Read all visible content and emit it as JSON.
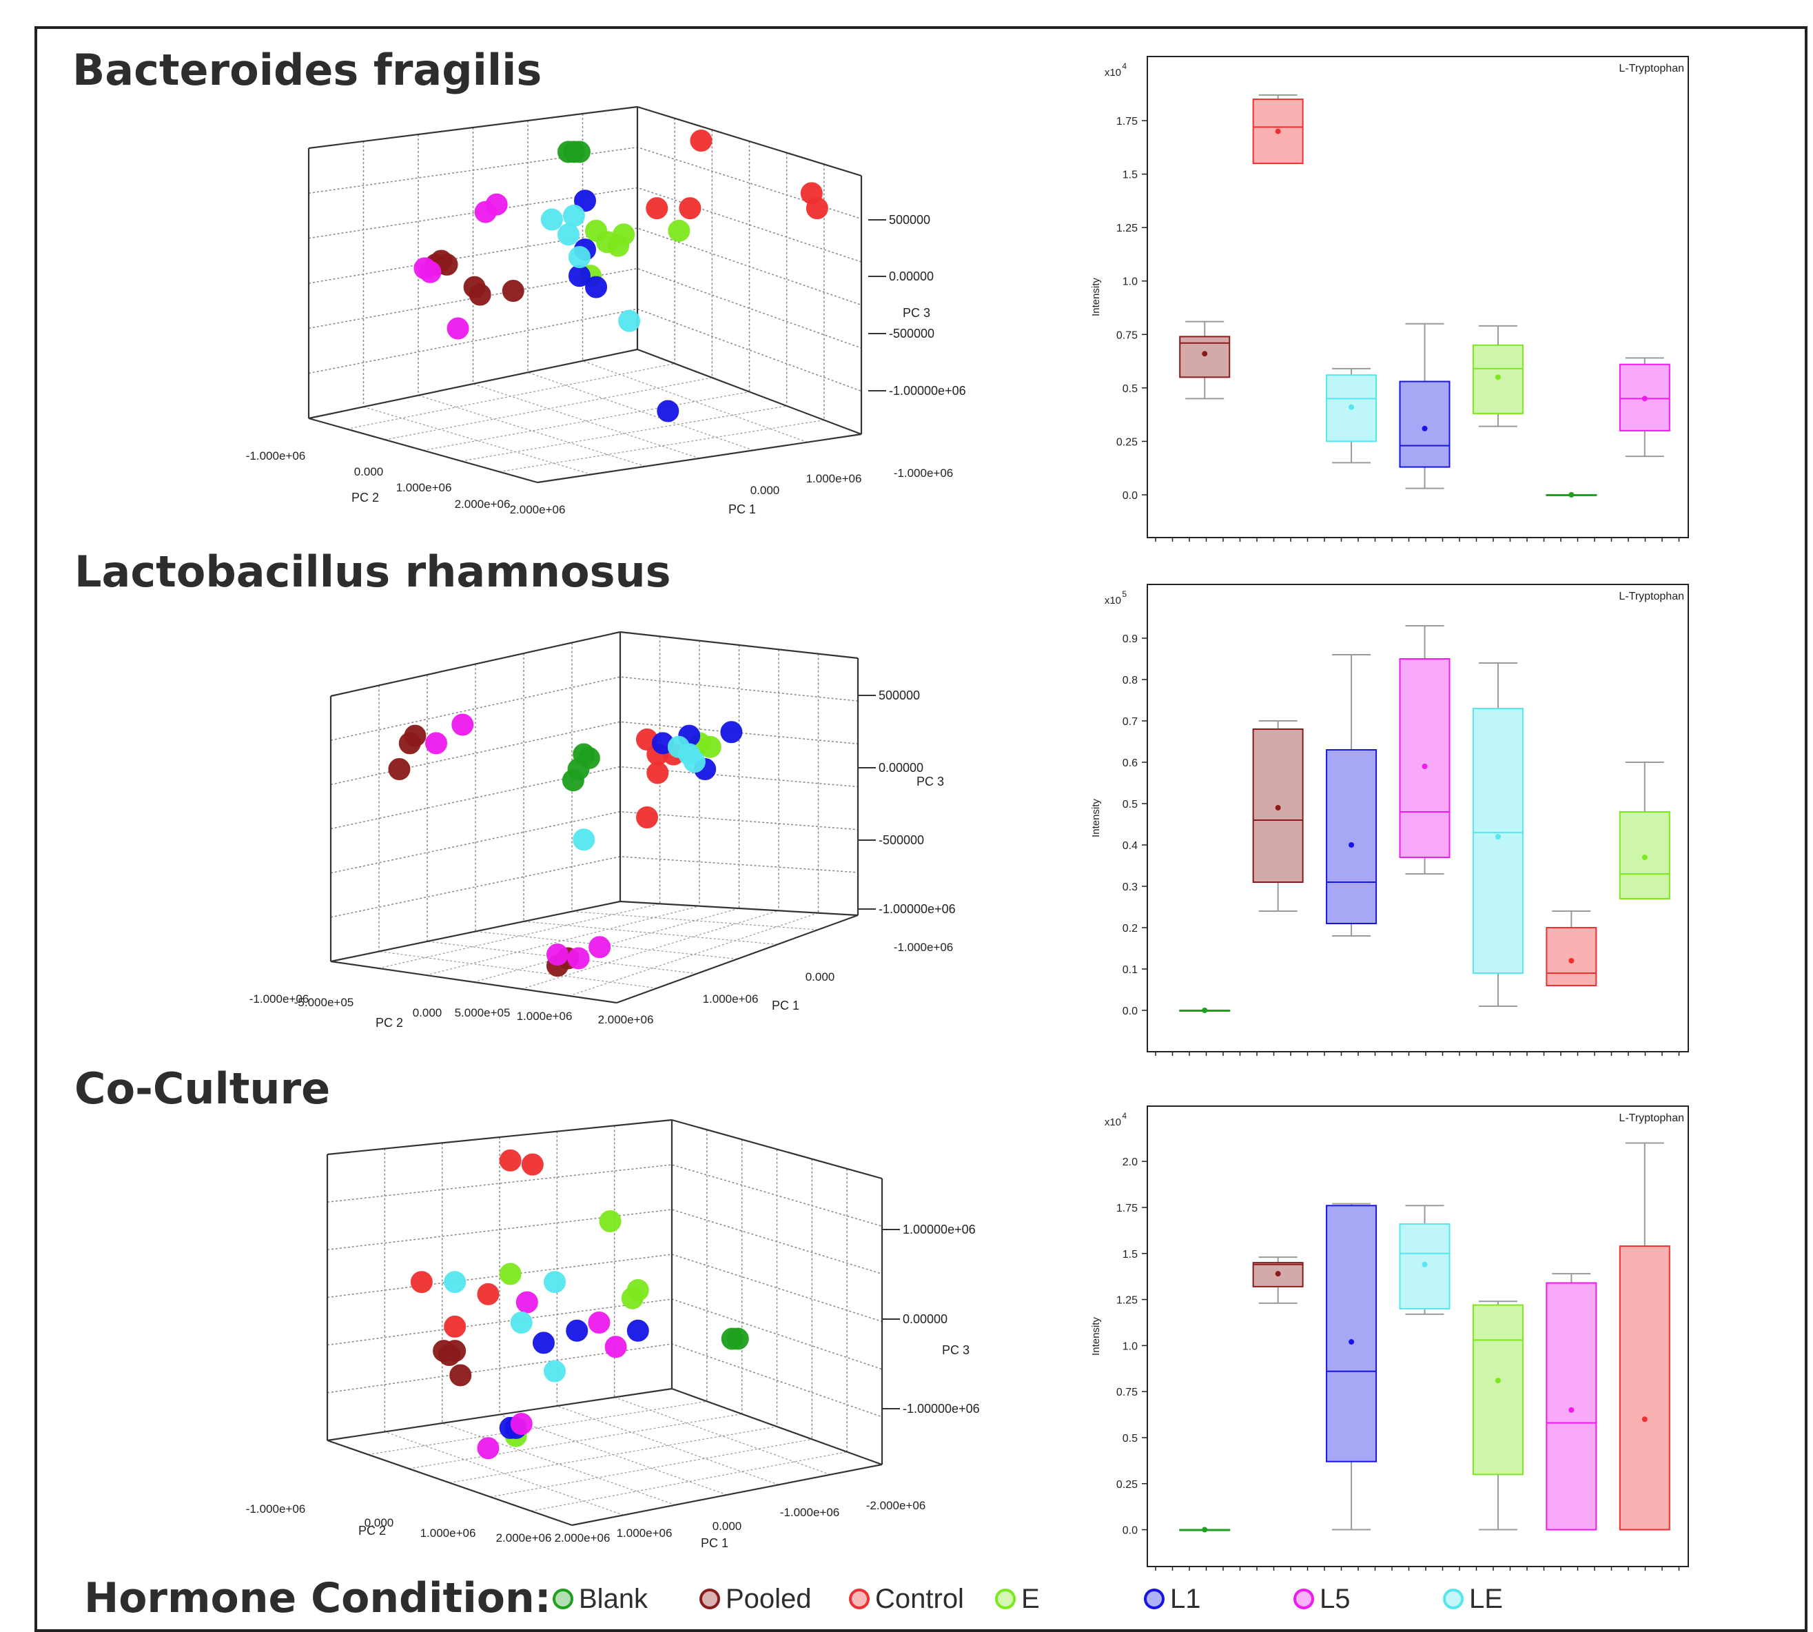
{
  "legend": {
    "title": "Hormone Condition:",
    "items": [
      {
        "label": "Blank",
        "color": "#1ea01e"
      },
      {
        "label": "Pooled",
        "color": "#8b1a1a"
      },
      {
        "label": "Control",
        "color": "#f03030"
      },
      {
        "label": "E",
        "color": "#7ee81e"
      },
      {
        "label": "L1",
        "color": "#1515e6"
      },
      {
        "label": "L5",
        "color": "#ee1aee"
      },
      {
        "label": "LE",
        "color": "#55e6f0"
      }
    ]
  },
  "panels": [
    {
      "title": "Bacteroides fragilis"
    },
    {
      "title": "Lactobacillus rhamnosus"
    },
    {
      "title": "Co-Culture"
    }
  ],
  "chart_data": [
    {
      "type": "scatter",
      "panel": "Bacteroides fragilis",
      "xlabel": "PC 1",
      "ylabel": "PC 2",
      "zlabel": "PC 3",
      "x_ticks": [
        "0.000",
        "1.000e+06",
        "-1.000e+06"
      ],
      "y_ticks": [
        "-1.000e+06",
        "0.000",
        "1.000e+06",
        "2.000e+06",
        "2.000e+06"
      ],
      "z_ticks": [
        "500000",
        "0.00000",
        "-500000",
        "-1.00000e+06"
      ],
      "projected_points": [
        {
          "group": "Blank",
          "pts": [
            [
              0.47,
              0.12
            ],
            [
              0.48,
              0.12
            ],
            [
              0.49,
              0.12
            ]
          ]
        },
        {
          "group": "Pooled",
          "pts": [
            [
              0.23,
              0.42
            ],
            [
              0.24,
              0.41
            ],
            [
              0.25,
              0.42
            ],
            [
              0.3,
              0.48
            ],
            [
              0.31,
              0.5
            ],
            [
              0.37,
              0.49
            ]
          ]
        },
        {
          "group": "Control",
          "pts": [
            [
              0.71,
              0.09
            ],
            [
              0.63,
              0.27
            ],
            [
              0.69,
              0.27
            ],
            [
              0.91,
              0.23
            ],
            [
              0.92,
              0.27
            ]
          ]
        },
        {
          "group": "E",
          "pts": [
            [
              0.52,
              0.33
            ],
            [
              0.54,
              0.36
            ],
            [
              0.56,
              0.37
            ],
            [
              0.57,
              0.34
            ],
            [
              0.67,
              0.33
            ],
            [
              0.51,
              0.45
            ]
          ]
        },
        {
          "group": "L1",
          "pts": [
            [
              0.5,
              0.25
            ],
            [
              0.5,
              0.38
            ],
            [
              0.49,
              0.45
            ],
            [
              0.52,
              0.48
            ],
            [
              0.65,
              0.81
            ]
          ]
        },
        {
          "group": "L5",
          "pts": [
            [
              0.32,
              0.28
            ],
            [
              0.34,
              0.26
            ],
            [
              0.21,
              0.43
            ],
            [
              0.22,
              0.44
            ],
            [
              0.27,
              0.59
            ]
          ]
        },
        {
          "group": "LE",
          "pts": [
            [
              0.44,
              0.3
            ],
            [
              0.48,
              0.29
            ],
            [
              0.47,
              0.34
            ],
            [
              0.49,
              0.4
            ],
            [
              0.58,
              0.57
            ]
          ]
        }
      ]
    },
    {
      "type": "box",
      "panel": "Bacteroides fragilis",
      "title": "L-Tryptophan",
      "ylabel": "Intensity",
      "y_scale_label": "x10^4",
      "y_ticks": [
        "0.0",
        "0.25",
        "0.5",
        "0.75",
        "1.0",
        "1.25",
        "1.5",
        "1.75"
      ],
      "ylim": [
        -0.2,
        2.05
      ],
      "boxes": [
        {
          "group": "Pooled",
          "min": 0.45,
          "q1": 0.55,
          "median": 0.71,
          "q3": 0.74,
          "max": 0.81,
          "mean": 0.66
        },
        {
          "group": "Control",
          "min": 1.55,
          "q1": 1.55,
          "median": 1.72,
          "q3": 1.85,
          "max": 1.87,
          "mean": 1.7
        },
        {
          "group": "LE",
          "min": 0.15,
          "q1": 0.25,
          "median": 0.45,
          "q3": 0.56,
          "max": 0.59,
          "mean": 0.41
        },
        {
          "group": "L1",
          "min": 0.03,
          "q1": 0.13,
          "median": 0.23,
          "q3": 0.53,
          "max": 0.8,
          "mean": 0.31
        },
        {
          "group": "E",
          "min": 0.32,
          "q1": 0.38,
          "median": 0.59,
          "q3": 0.7,
          "max": 0.79,
          "mean": 0.55
        },
        {
          "group": "Blank",
          "min": 0.0,
          "q1": 0.0,
          "median": 0.0,
          "q3": 0.0,
          "max": 0.0,
          "mean": 0.0
        },
        {
          "group": "L5",
          "min": 0.18,
          "q1": 0.3,
          "median": 0.45,
          "q3": 0.61,
          "max": 0.64,
          "mean": 0.45
        }
      ]
    },
    {
      "type": "scatter",
      "panel": "Lactobacillus rhamnosus",
      "xlabel": "PC 1",
      "ylabel": "PC 2",
      "zlabel": "PC 3",
      "x_ticks": [
        "1.000e+06",
        "0.000",
        "-1.000e+06"
      ],
      "y_ticks": [
        "-1.000e+06",
        "-5.000e+05",
        "0.000",
        "5.000e+05",
        "1.000e+06",
        "2.000e+06"
      ],
      "z_ticks": [
        "500000",
        "0.00000",
        "-500000",
        "-1.00000e+06"
      ],
      "projected_points": [
        {
          "group": "Blank",
          "pts": [
            [
              0.48,
              0.33
            ],
            [
              0.49,
              0.34
            ],
            [
              0.47,
              0.37
            ],
            [
              0.46,
              0.4
            ]
          ]
        },
        {
          "group": "Pooled",
          "pts": [
            [
              0.16,
              0.28
            ],
            [
              0.15,
              0.3
            ],
            [
              0.13,
              0.37
            ],
            [
              0.43,
              0.9
            ],
            [
              0.45,
              0.88
            ]
          ]
        },
        {
          "group": "Control",
          "pts": [
            [
              0.6,
              0.29
            ],
            [
              0.62,
              0.33
            ],
            [
              0.65,
              0.33
            ],
            [
              0.62,
              0.38
            ],
            [
              0.6,
              0.5
            ]
          ]
        },
        {
          "group": "E",
          "pts": [
            [
              0.7,
              0.3
            ],
            [
              0.72,
              0.31
            ]
          ]
        },
        {
          "group": "L1",
          "pts": [
            [
              0.63,
              0.3
            ],
            [
              0.68,
              0.28
            ],
            [
              0.76,
              0.27
            ],
            [
              0.71,
              0.37
            ]
          ]
        },
        {
          "group": "L5",
          "pts": [
            [
              0.2,
              0.3
            ],
            [
              0.25,
              0.25
            ],
            [
              0.43,
              0.87
            ],
            [
              0.47,
              0.88
            ],
            [
              0.51,
              0.85
            ]
          ]
        },
        {
          "group": "LE",
          "pts": [
            [
              0.66,
              0.31
            ],
            [
              0.68,
              0.33
            ],
            [
              0.69,
              0.35
            ],
            [
              0.48,
              0.56
            ]
          ]
        }
      ]
    },
    {
      "type": "box",
      "panel": "Lactobacillus rhamnosus",
      "title": "L-Tryptophan",
      "ylabel": "Intensity",
      "y_scale_label": "x10^5",
      "y_ticks": [
        "0.0",
        "0.1",
        "0.2",
        "0.3",
        "0.4",
        "0.5",
        "0.6",
        "0.7",
        "0.8",
        "0.9"
      ],
      "ylim": [
        -0.1,
        1.03
      ],
      "boxes": [
        {
          "group": "Blank",
          "min": 0.0,
          "q1": 0.0,
          "median": 0.0,
          "q3": 0.0,
          "max": 0.0,
          "mean": 0.0
        },
        {
          "group": "Pooled",
          "min": 0.24,
          "q1": 0.31,
          "median": 0.46,
          "q3": 0.68,
          "max": 0.7,
          "mean": 0.49
        },
        {
          "group": "L1",
          "min": 0.18,
          "q1": 0.21,
          "median": 0.31,
          "q3": 0.63,
          "max": 0.86,
          "mean": 0.4
        },
        {
          "group": "L5",
          "min": 0.33,
          "q1": 0.37,
          "median": 0.48,
          "q3": 0.85,
          "max": 0.93,
          "mean": 0.59
        },
        {
          "group": "LE",
          "min": 0.01,
          "q1": 0.09,
          "median": 0.43,
          "q3": 0.73,
          "max": 0.84,
          "mean": 0.42
        },
        {
          "group": "Control",
          "min": 0.06,
          "q1": 0.06,
          "median": 0.09,
          "q3": 0.2,
          "max": 0.24,
          "mean": 0.12
        },
        {
          "group": "E",
          "min": 0.27,
          "q1": 0.27,
          "median": 0.33,
          "q3": 0.48,
          "max": 0.6,
          "mean": 0.37
        }
      ]
    },
    {
      "type": "scatter",
      "panel": "Co-Culture",
      "xlabel": "PC 1",
      "ylabel": "PC 2",
      "zlabel": "PC 3",
      "x_ticks": [
        "1.000e+06",
        "0.000",
        "-1.000e+06",
        "-2.000e+06"
      ],
      "y_ticks": [
        "-1.000e+06",
        "0.000",
        "1.000e+06",
        "2.000e+06",
        "2.000e+06"
      ],
      "z_ticks": [
        "1.00000e+06",
        "0.00000",
        "-1.00000e+06"
      ],
      "projected_points": [
        {
          "group": "Blank",
          "pts": [
            [
              0.73,
              0.54
            ],
            [
              0.74,
              0.54
            ]
          ]
        },
        {
          "group": "Pooled",
          "pts": [
            [
              0.21,
              0.57
            ],
            [
              0.22,
              0.58
            ],
            [
              0.23,
              0.57
            ],
            [
              0.24,
              0.63
            ]
          ]
        },
        {
          "group": "Control",
          "pts": [
            [
              0.33,
              0.1
            ],
            [
              0.37,
              0.11
            ],
            [
              0.17,
              0.4
            ],
            [
              0.29,
              0.43
            ],
            [
              0.23,
              0.51
            ]
          ]
        },
        {
          "group": "E",
          "pts": [
            [
              0.51,
              0.25
            ],
            [
              0.33,
              0.38
            ],
            [
              0.55,
              0.44
            ],
            [
              0.56,
              0.42
            ],
            [
              0.34,
              0.78
            ]
          ]
        },
        {
          "group": "L1",
          "pts": [
            [
              0.39,
              0.55
            ],
            [
              0.45,
              0.52
            ],
            [
              0.56,
              0.52
            ],
            [
              0.33,
              0.76
            ],
            [
              0.34,
              0.76
            ]
          ]
        },
        {
          "group": "L5",
          "pts": [
            [
              0.36,
              0.45
            ],
            [
              0.49,
              0.5
            ],
            [
              0.52,
              0.56
            ],
            [
              0.35,
              0.75
            ],
            [
              0.29,
              0.81
            ]
          ]
        },
        {
          "group": "LE",
          "pts": [
            [
              0.23,
              0.4
            ],
            [
              0.41,
              0.4
            ],
            [
              0.35,
              0.5
            ],
            [
              0.41,
              0.62
            ]
          ]
        }
      ]
    },
    {
      "type": "box",
      "panel": "Co-Culture",
      "title": "L-Tryptophan",
      "ylabel": "Intensity",
      "y_scale_label": "x10^4",
      "y_ticks": [
        "0.0",
        "0.25",
        "0.5",
        "0.75",
        "1.0",
        "1.25",
        "1.5",
        "1.75",
        "2.0"
      ],
      "ylim": [
        -0.2,
        2.3
      ],
      "boxes": [
        {
          "group": "Blank",
          "min": 0.0,
          "q1": 0.0,
          "median": 0.0,
          "q3": 0.0,
          "max": 0.0,
          "mean": 0.0
        },
        {
          "group": "Pooled",
          "min": 1.23,
          "q1": 1.32,
          "median": 1.44,
          "q3": 1.45,
          "max": 1.48,
          "mean": 1.39
        },
        {
          "group": "L1",
          "min": 0.0,
          "q1": 0.37,
          "median": 0.86,
          "q3": 1.76,
          "max": 1.77,
          "mean": 1.02
        },
        {
          "group": "LE",
          "min": 1.17,
          "q1": 1.2,
          "median": 1.5,
          "q3": 1.66,
          "max": 1.76,
          "mean": 1.44
        },
        {
          "group": "E",
          "min": 0.0,
          "q1": 0.3,
          "median": 1.03,
          "q3": 1.22,
          "max": 1.24,
          "mean": 0.81
        },
        {
          "group": "L5",
          "min": 0.0,
          "q1": 0.0,
          "median": 0.58,
          "q3": 1.34,
          "max": 1.39,
          "mean": 0.65
        },
        {
          "group": "Control",
          "min": 0.0,
          "q1": 0.0,
          "median": 0.0,
          "q3": 1.54,
          "max": 2.1,
          "mean": 0.6
        }
      ]
    }
  ]
}
